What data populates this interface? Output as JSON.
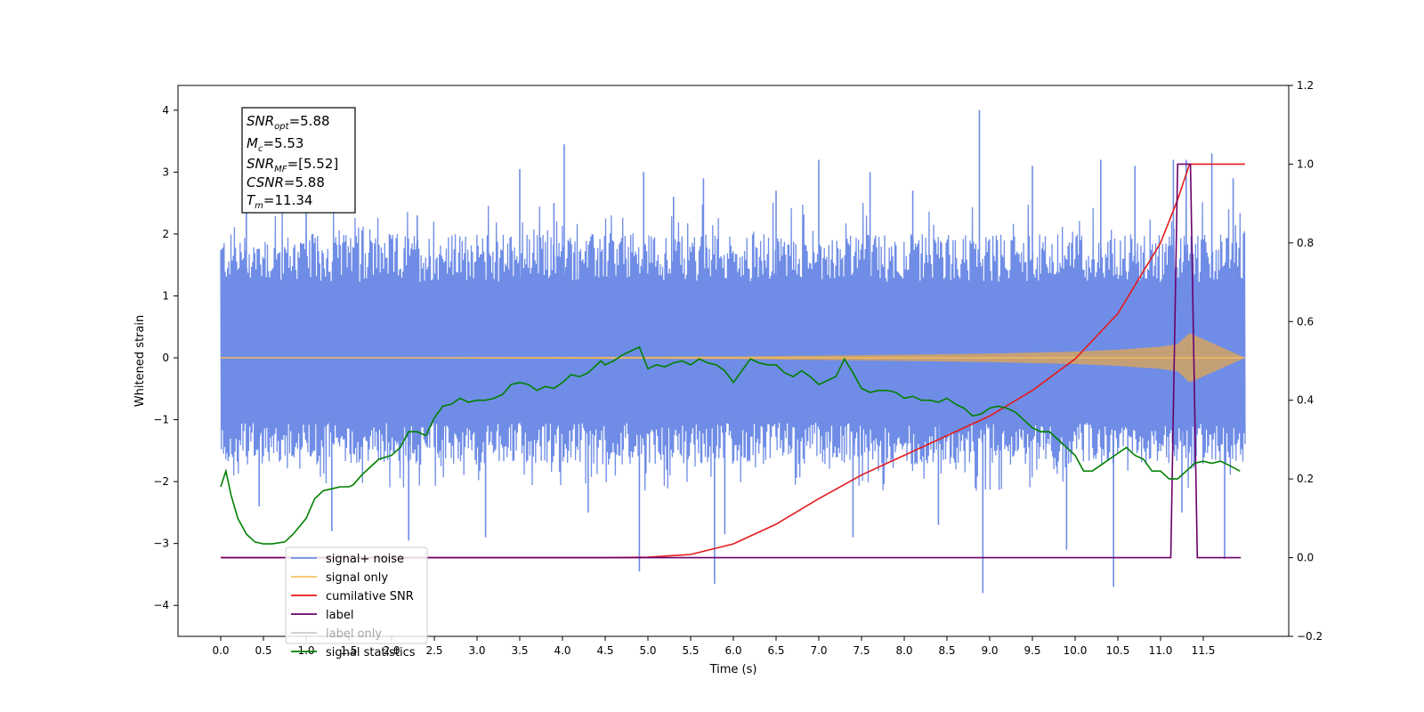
{
  "chart_data": {
    "type": "line",
    "xlabel": "Time (s)",
    "ylabel_left": "Whitened strain",
    "xlim": [
      -0.5,
      12.5
    ],
    "ylim_left": [
      -4.5,
      4.4
    ],
    "ylim_right": [
      -0.2,
      1.2
    ],
    "x_ticks": [
      0.0,
      0.5,
      1.0,
      1.5,
      2.0,
      2.5,
      3.0,
      3.5,
      4.0,
      4.5,
      5.0,
      5.5,
      6.0,
      6.5,
      7.0,
      7.5,
      8.0,
      8.5,
      9.0,
      9.5,
      10.0,
      10.5,
      11.0,
      11.5
    ],
    "x_tick_labels": [
      "0.0",
      "0.5",
      "1.0",
      "1.5",
      "2.0",
      "2.5",
      "3.0",
      "3.5",
      "4.0",
      "4.5",
      "5.0",
      "5.5",
      "6.0",
      "6.5",
      "7.0",
      "7.5",
      "8.0",
      "8.5",
      "9.0",
      "9.5",
      "10.0",
      "10.5",
      "11.0",
      "11.5"
    ],
    "y_left_ticks": [
      -4,
      -3,
      -2,
      -1,
      0,
      1,
      2,
      3,
      4
    ],
    "y_left_tick_labels": [
      "−4",
      "−3",
      "−2",
      "−1",
      "0",
      "1",
      "2",
      "3",
      "4"
    ],
    "y_right_ticks": [
      -0.2,
      0.0,
      0.2,
      0.4,
      0.6,
      0.8,
      1.0,
      1.2
    ],
    "y_right_tick_labels": [
      "−0.2",
      "0.0",
      "0.2",
      "0.4",
      "0.6",
      "0.8",
      "1.0",
      "1.2"
    ],
    "annotation": [
      {
        "main": "SNR",
        "sub": "opt",
        "rest": "=5.88"
      },
      {
        "main": "M",
        "sub": "c",
        "rest": "=5.53"
      },
      {
        "main": "SNR",
        "sub": "MF",
        "rest": "=[5.52]"
      },
      {
        "main": "CSNR",
        "sub": "",
        "rest": "=5.88"
      },
      {
        "main": "T",
        "sub": "m",
        "rest": "=11.34"
      }
    ],
    "series": [
      {
        "name": "signal+ noise",
        "color": "#6f8de6",
        "axis": "left",
        "x_range": [
          0.0,
          11.99
        ],
        "band_typical": [
          -1.5,
          1.75
        ],
        "spikes": [
          {
            "x": 0.3,
            "y": 2.6
          },
          {
            "x": 0.45,
            "y": -2.4
          },
          {
            "x": 1.0,
            "y": 2.4
          },
          {
            "x": 1.3,
            "y": -2.8
          },
          {
            "x": 2.2,
            "y": -2.95
          },
          {
            "x": 2.3,
            "y": 2.3
          },
          {
            "x": 3.1,
            "y": -2.9
          },
          {
            "x": 3.5,
            "y": 3.05
          },
          {
            "x": 3.9,
            "y": 2.5
          },
          {
            "x": 4.02,
            "y": 3.45
          },
          {
            "x": 4.3,
            "y": -2.5
          },
          {
            "x": 4.95,
            "y": 3.0
          },
          {
            "x": 4.9,
            "y": -3.45
          },
          {
            "x": 5.3,
            "y": 2.6
          },
          {
            "x": 5.65,
            "y": 2.9
          },
          {
            "x": 5.78,
            "y": -3.65
          },
          {
            "x": 5.9,
            "y": -2.85
          },
          {
            "x": 6.5,
            "y": 2.7
          },
          {
            "x": 7.0,
            "y": 3.2
          },
          {
            "x": 7.4,
            "y": -2.9
          },
          {
            "x": 7.6,
            "y": 3.0
          },
          {
            "x": 8.1,
            "y": 2.7
          },
          {
            "x": 8.4,
            "y": -2.7
          },
          {
            "x": 8.88,
            "y": 4.0
          },
          {
            "x": 8.92,
            "y": -3.8
          },
          {
            "x": 9.5,
            "y": 3.1
          },
          {
            "x": 9.9,
            "y": -3.1
          },
          {
            "x": 10.3,
            "y": 3.2
          },
          {
            "x": 10.45,
            "y": -3.7
          },
          {
            "x": 10.7,
            "y": 3.1
          },
          {
            "x": 11.15,
            "y": 3.2
          },
          {
            "x": 11.25,
            "y": -2.5
          },
          {
            "x": 11.3,
            "y": 3.2
          },
          {
            "x": 11.6,
            "y": 3.3
          },
          {
            "x": 11.75,
            "y": -3.25
          },
          {
            "x": 11.85,
            "y": 2.9
          }
        ]
      },
      {
        "name": "signal only",
        "color": "#f5c060",
        "axis": "left",
        "x": [
          0.0,
          2.0,
          4.0,
          6.0,
          7.0,
          8.0,
          9.0,
          10.0,
          10.5,
          11.0,
          11.2,
          11.34,
          11.99
        ],
        "envelope": [
          0.01,
          0.01,
          0.015,
          0.02,
          0.035,
          0.05,
          0.07,
          0.1,
          0.13,
          0.18,
          0.22,
          0.4,
          0.0
        ]
      },
      {
        "name": "cumilative SNR",
        "color": "#e41a1c",
        "axis": "right",
        "x": [
          0.0,
          4.5,
          5.0,
          5.5,
          6.0,
          6.5,
          7.0,
          7.5,
          8.0,
          8.5,
          9.0,
          9.5,
          10.0,
          10.5,
          11.0,
          11.2,
          11.34,
          11.5,
          11.99
        ],
        "y": [
          0.0,
          0.0,
          0.001,
          0.008,
          0.035,
          0.085,
          0.15,
          0.21,
          0.26,
          0.31,
          0.36,
          0.425,
          0.505,
          0.62,
          0.8,
          0.91,
          1.0,
          1.0,
          1.0
        ]
      },
      {
        "name": "label",
        "color": "#6a006a",
        "axis": "right",
        "x": [
          0.0,
          11.12,
          11.2,
          11.35,
          11.43,
          11.94
        ],
        "y": [
          0.0,
          0.0,
          1.0,
          1.0,
          0.0,
          0.0
        ]
      },
      {
        "name": "label only",
        "color": "#cccccc",
        "axis": "right",
        "x": [],
        "y": []
      },
      {
        "name": "signal statistics",
        "color": "#008000",
        "axis": "right",
        "x": [
          0.0,
          0.06,
          0.12,
          0.2,
          0.3,
          0.4,
          0.5,
          0.6,
          0.75,
          0.85,
          1.0,
          1.1,
          1.2,
          1.3,
          1.4,
          1.5,
          1.55,
          1.65,
          1.75,
          1.85,
          2.0,
          2.1,
          2.2,
          2.3,
          2.4,
          2.5,
          2.6,
          2.7,
          2.8,
          2.9,
          3.0,
          3.1,
          3.2,
          3.3,
          3.4,
          3.5,
          3.6,
          3.7,
          3.8,
          3.9,
          4.0,
          4.1,
          4.2,
          4.3,
          4.45,
          4.5,
          4.6,
          4.7,
          4.8,
          4.9,
          5.0,
          5.1,
          5.2,
          5.3,
          5.4,
          5.5,
          5.6,
          5.7,
          5.8,
          5.9,
          6.0,
          6.1,
          6.2,
          6.3,
          6.4,
          6.5,
          6.6,
          6.7,
          6.8,
          6.9,
          7.0,
          7.1,
          7.2,
          7.3,
          7.4,
          7.5,
          7.6,
          7.7,
          7.8,
          7.9,
          8.0,
          8.1,
          8.2,
          8.3,
          8.4,
          8.5,
          8.6,
          8.7,
          8.8,
          8.9,
          9.0,
          9.1,
          9.2,
          9.3,
          9.4,
          9.5,
          9.6,
          9.7,
          9.8,
          9.9,
          10.0,
          10.1,
          10.2,
          10.3,
          10.4,
          10.5,
          10.6,
          10.7,
          10.8,
          10.9,
          11.0,
          11.1,
          11.2,
          11.3,
          11.4,
          11.5,
          11.6,
          11.7,
          11.8,
          11.93
        ],
        "y": [
          0.18,
          0.22,
          0.16,
          0.1,
          0.06,
          0.04,
          0.035,
          0.035,
          0.04,
          0.06,
          0.1,
          0.15,
          0.17,
          0.175,
          0.18,
          0.18,
          0.185,
          0.21,
          0.23,
          0.25,
          0.26,
          0.28,
          0.32,
          0.32,
          0.31,
          0.355,
          0.385,
          0.39,
          0.405,
          0.395,
          0.4,
          0.4,
          0.405,
          0.415,
          0.44,
          0.445,
          0.44,
          0.425,
          0.435,
          0.43,
          0.445,
          0.465,
          0.46,
          0.47,
          0.5,
          0.49,
          0.5,
          0.515,
          0.525,
          0.535,
          0.48,
          0.49,
          0.485,
          0.495,
          0.5,
          0.49,
          0.505,
          0.495,
          0.49,
          0.475,
          0.445,
          0.475,
          0.505,
          0.495,
          0.49,
          0.49,
          0.47,
          0.46,
          0.475,
          0.46,
          0.44,
          0.45,
          0.46,
          0.505,
          0.47,
          0.43,
          0.42,
          0.425,
          0.425,
          0.42,
          0.405,
          0.41,
          0.4,
          0.4,
          0.395,
          0.405,
          0.39,
          0.38,
          0.36,
          0.365,
          0.38,
          0.385,
          0.38,
          0.37,
          0.35,
          0.33,
          0.32,
          0.32,
          0.3,
          0.28,
          0.26,
          0.22,
          0.22,
          0.235,
          0.25,
          0.265,
          0.28,
          0.26,
          0.25,
          0.22,
          0.22,
          0.2,
          0.2,
          0.22,
          0.24,
          0.245,
          0.24,
          0.245,
          0.235,
          0.22
        ]
      }
    ],
    "legend_location": "lower-left"
  }
}
